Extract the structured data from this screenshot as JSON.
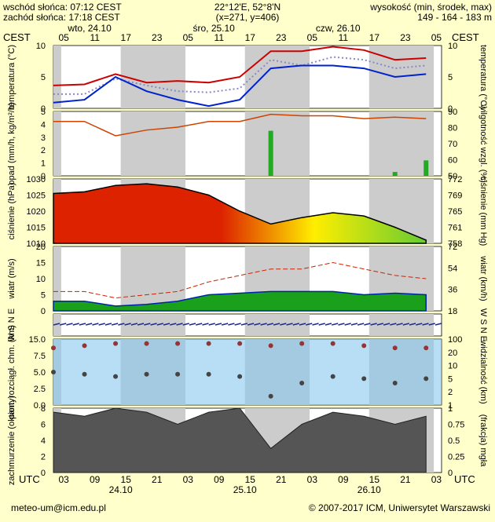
{
  "header": {
    "sunrise": "wschód słońca: 07:12 CEST",
    "sunset": "zachód słońca: 17:18 CEST",
    "coords": "22°12'E, 52°8'N",
    "grid": "(x=271, y=406)",
    "elev_label": "wysokość (min, środek, max)",
    "elev_values": "149 - 164 - 183 m"
  },
  "top_axis": {
    "tz": "CEST",
    "hours": [
      "05",
      "11",
      "17",
      "23",
      "05",
      "11",
      "17",
      "23",
      "05",
      "11",
      "17",
      "23",
      "05"
    ],
    "days": [
      "wto, 24.10",
      "śro, 25.10",
      "czw, 26.10"
    ]
  },
  "bottom_axis": {
    "tz": "UTC",
    "hours": [
      "03",
      "09",
      "15",
      "21",
      "03",
      "09",
      "15",
      "21",
      "03",
      "09",
      "15",
      "21",
      "03"
    ],
    "dates": [
      "24.10",
      "25.10",
      "26.10"
    ]
  },
  "footer": {
    "email": "meteo-um@icm.edu.pl",
    "copyright": "© 2007-2017 ICM, Uniwersytet Warszawski"
  },
  "colors": {
    "background": "#ffffcc",
    "night": "#cccccc",
    "day": "#ffffff",
    "temp_max": "#cc0000",
    "temp_min": "#0022cc",
    "rain": "#22aa22",
    "humidity": "#cc4400",
    "pressure_high": "#dd2200",
    "pressure_low": "#ffee00"
  },
  "chart_data": [
    {
      "type": "line",
      "left_label": "temperatura (°C)",
      "right_label": "temperatura (°C)",
      "ylim": [
        0,
        11
      ],
      "yticks": [
        "0",
        "5",
        "10"
      ],
      "yticks_right": [
        "0",
        "5",
        "10"
      ],
      "x": [
        0,
        6,
        12,
        18,
        24,
        30,
        36,
        42,
        48,
        54,
        60,
        66,
        72
      ],
      "series": [
        {
          "values": [
            4,
            4.2,
            6,
            4.5,
            4.8,
            4.5,
            5.5,
            10,
            10,
            10.8,
            10.2,
            8.5,
            8.8
          ]
        },
        {
          "values": [
            2.5,
            2.5,
            5.2,
            4,
            3,
            2.8,
            3.5,
            8.5,
            7.5,
            9,
            8.5,
            7,
            7.5
          ]
        },
        {
          "values": [
            1,
            1.5,
            5.5,
            3,
            1.5,
            0.4,
            1.5,
            7,
            7.5,
            7.5,
            7,
            5.5,
            6
          ]
        }
      ]
    },
    {
      "type": "bar",
      "left_label": "opad (mm/h, kg/m²/h)",
      "right_label": "wilgotność wzgl. (%)",
      "ylim": [
        0,
        5
      ],
      "ylim_right": [
        50,
        95
      ],
      "yticks": [
        "0",
        "1",
        "2",
        "3",
        "4",
        "5"
      ],
      "yticks_right": [
        "50",
        "60",
        "70",
        "80",
        "90"
      ],
      "x": [
        0,
        6,
        12,
        18,
        24,
        30,
        36,
        42,
        48,
        54,
        60,
        66,
        72
      ],
      "series": [
        {
          "type": "line",
          "values": [
            88,
            88,
            78,
            82,
            84,
            88,
            88,
            93,
            92,
            92,
            90,
            91,
            90
          ]
        },
        {
          "type": "bar",
          "values": [
            0,
            0,
            0,
            0,
            0,
            0,
            0,
            3.5,
            0,
            0,
            0,
            0.3,
            1.2
          ]
        }
      ]
    },
    {
      "type": "area",
      "left_label": "ciśnienie (hPa)",
      "right_label": "ciśnienie (mm Hg)",
      "ylim": [
        1010,
        1030
      ],
      "yticks": [
        "1010",
        "1015",
        "1020",
        "1025",
        "1030"
      ],
      "yticks_right": [
        "758",
        "761",
        "765",
        "769",
        "772"
      ],
      "x": [
        0,
        6,
        12,
        18,
        24,
        30,
        36,
        42,
        48,
        54,
        60,
        66,
        72
      ],
      "values": [
        1025.5,
        1026,
        1028,
        1028.5,
        1027.5,
        1025,
        1020,
        1016,
        1018,
        1019.5,
        1018.5,
        1015,
        1011
      ]
    },
    {
      "type": "area",
      "left_label": "wiatr (m/s)",
      "right_label": "wiatr (km/h)",
      "ylim": [
        0,
        20
      ],
      "yticks": [
        "0",
        "5",
        "10",
        "15",
        "20"
      ],
      "yticks_right": [
        "18",
        "36",
        "54",
        "72"
      ],
      "x": [
        0,
        6,
        12,
        18,
        24,
        30,
        36,
        42,
        48,
        54,
        60,
        66,
        72
      ],
      "series": [
        {
          "type": "area",
          "values": [
            3,
            3,
            1.5,
            2,
            3,
            5,
            5.5,
            6,
            6,
            6,
            5,
            5.5,
            5
          ]
        },
        {
          "type": "line",
          "values": [
            6,
            6,
            4,
            5,
            6,
            9,
            11,
            13,
            13,
            15,
            13,
            11,
            10
          ]
        }
      ]
    },
    {
      "type": "line",
      "left_label": "W S N E",
      "right_label": "W S N E"
    },
    {
      "type": "scatter",
      "left_label": "pion. rozciągł. chm. (km)",
      "right_label": "widzialność (km)",
      "ylim": [
        0,
        15
      ],
      "yticks": [
        "0.0",
        "2.5",
        "5.0",
        "7.5",
        "15.0"
      ],
      "yticks_right": [
        "1",
        "2",
        "5",
        "10",
        "20",
        "100"
      ],
      "x": [
        0,
        6,
        12,
        18,
        24,
        30,
        36,
        42,
        48,
        54,
        60,
        66,
        72
      ],
      "series": [
        {
          "values": [
            13,
            13.5,
            14,
            14,
            14,
            14,
            14,
            13.5,
            14,
            14,
            13.5,
            13,
            13
          ]
        },
        {
          "values": [
            7.5,
            7,
            6.5,
            7,
            7,
            7,
            6.5,
            2,
            5,
            6.5,
            6,
            5,
            6
          ]
        }
      ]
    },
    {
      "type": "area",
      "left_label": "zachmurzenie (oktanty)",
      "right_label": "(frakcja) mgła",
      "ylim": [
        0,
        8
      ],
      "yticks": [
        "0",
        "2",
        "4",
        "6",
        "8"
      ],
      "yticks_right": [
        "0",
        "0.25",
        "0.5",
        "0.75",
        "1"
      ],
      "x": [
        0,
        6,
        12,
        18,
        24,
        30,
        36,
        42,
        48,
        54,
        60,
        66,
        72
      ],
      "values": [
        7.5,
        7,
        8,
        7.5,
        6,
        7.5,
        8,
        3,
        6,
        7.5,
        7,
        6,
        7
      ]
    }
  ]
}
